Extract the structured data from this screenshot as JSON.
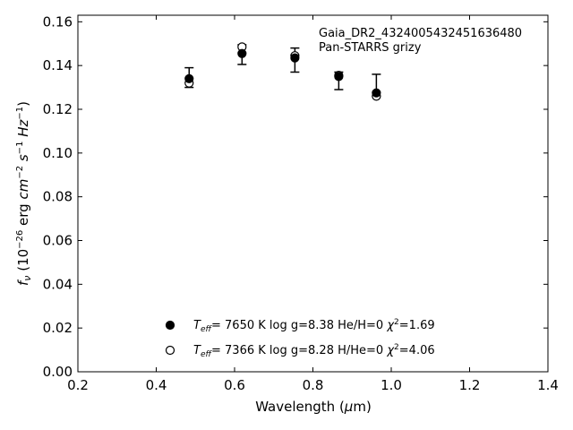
{
  "chart_data": {
    "type": "scatter",
    "x_ticks": [
      "0.2",
      "0.4",
      "0.6",
      "0.8",
      "1.0",
      "1.2",
      "1.4"
    ],
    "y_ticks": [
      "0.00",
      "0.02",
      "0.04",
      "0.06",
      "0.08",
      "0.10",
      "0.12",
      "0.14",
      "0.16"
    ],
    "xlim": [
      0.2,
      1.4
    ],
    "ylim": [
      0.0,
      0.163
    ],
    "xlabel": "Wavelength (μm)",
    "ylabel": "fν (10⁻²⁶ erg cm⁻² s⁻¹ Hz⁻¹)",
    "grid": false,
    "annotation": {
      "line1": "Gaia_DR2_4324005432451636480",
      "line2": "Pan-STARRS grizy"
    },
    "observed": {
      "x": [
        0.484,
        0.619,
        0.754,
        0.866,
        0.962
      ],
      "y": [
        0.1345,
        0.145,
        0.1425,
        0.133,
        0.131
      ],
      "yerr": [
        0.0045,
        0.0045,
        0.0055,
        0.004,
        0.005
      ]
    },
    "series": [
      {
        "name": "Teff= 7650 K log g=8.38 He/H=0 χ2=1.69",
        "marker": "filled-circle",
        "x": [
          0.484,
          0.619,
          0.754,
          0.866,
          0.962
        ],
        "y": [
          0.134,
          0.1455,
          0.1435,
          0.135,
          0.1275
        ]
      },
      {
        "name": "Teff= 7366 K log g=8.28 H/He=0 χ2=4.06",
        "marker": "open-circle",
        "x": [
          0.484,
          0.619,
          0.754,
          0.866,
          0.962
        ],
        "y": [
          0.132,
          0.1485,
          0.1445,
          0.1355,
          0.126
        ]
      }
    ],
    "legend_placement": "bottom-center",
    "legend": [
      {
        "teff_value": "7650 K",
        "logg": "log g=8.38",
        "comp": "He/H=0",
        "chi_value": "=1.69"
      },
      {
        "teff_value": "7366 K",
        "logg": "log g=8.28",
        "comp": "H/He=0",
        "chi_value": "=4.06"
      }
    ]
  }
}
